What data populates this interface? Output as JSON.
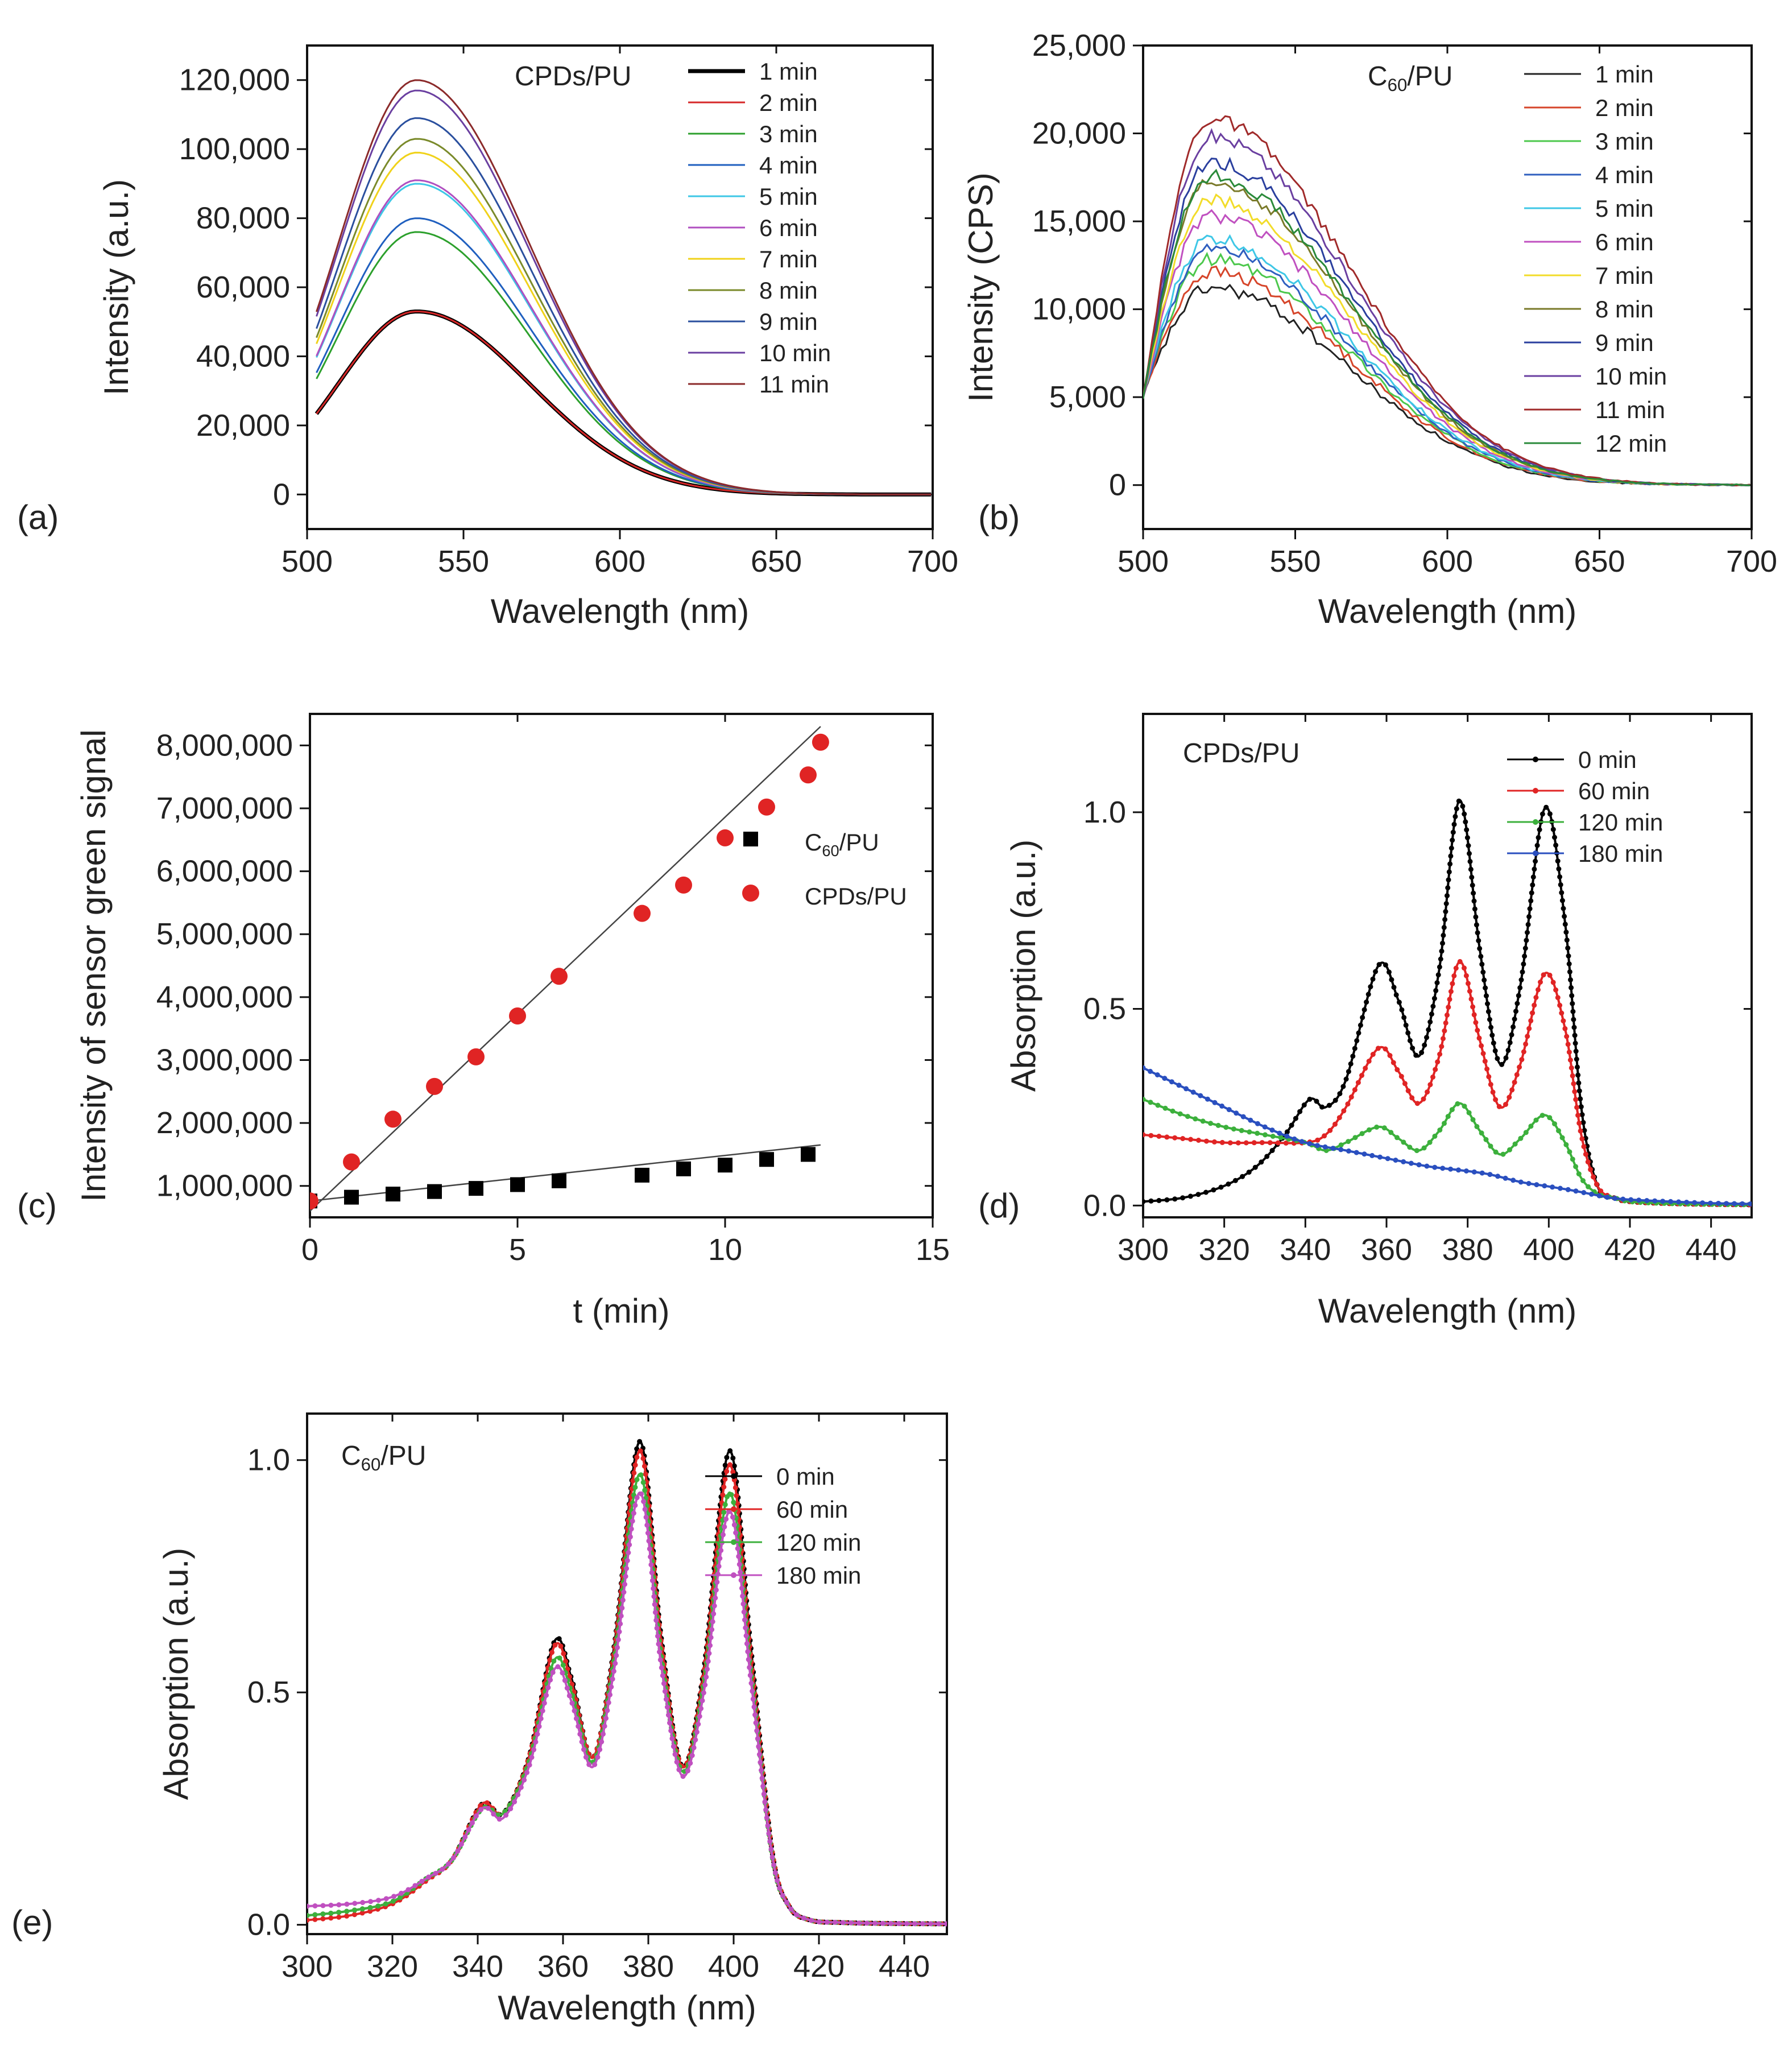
{
  "chart_data": [
    {
      "panel": "(a)",
      "type": "line",
      "inset": "CPDs/PU",
      "xlabel": "Wavelength (nm)",
      "ylabel": "Intensity (a.u.)",
      "xlim": [
        500,
        700
      ],
      "ylim": [
        -10000,
        130000
      ],
      "xticks": [
        500,
        550,
        600,
        650,
        700
      ],
      "xtick_labels": [
        "500",
        "550",
        "600",
        "650",
        "700"
      ],
      "yticks": [
        0,
        20000,
        40000,
        60000,
        80000,
        100000,
        120000
      ],
      "ytick_labels": [
        "0",
        "20,000",
        "40,000",
        "60,000",
        "80,000",
        "100,000",
        "120,000"
      ],
      "curve_model": {
        "peak_x": 535,
        "sigma_left": 25,
        "sigma_right": 36,
        "x_start": 503
      },
      "series": [
        {
          "name": "1 min",
          "peak": 53000,
          "color": "#000000",
          "width": 7
        },
        {
          "name": "2 min",
          "peak": 53000,
          "color": "#d62728",
          "width": 3
        },
        {
          "name": "3 min",
          "peak": 76000,
          "color": "#2ca02c",
          "width": 3
        },
        {
          "name": "4 min",
          "peak": 80000,
          "color": "#1f5fbf",
          "width": 3
        },
        {
          "name": "5 min",
          "peak": 90000,
          "color": "#3ec7e6",
          "width": 3
        },
        {
          "name": "6 min",
          "peak": 91000,
          "color": "#b04fc0",
          "width": 3
        },
        {
          "name": "7 min",
          "peak": 99000,
          "color": "#f0d21a",
          "width": 3
        },
        {
          "name": "8 min",
          "peak": 103000,
          "color": "#7a8a2a",
          "width": 3
        },
        {
          "name": "9 min",
          "peak": 109000,
          "color": "#2a4f9e",
          "width": 3
        },
        {
          "name": "10 min",
          "peak": 117000,
          "color": "#6a3fa0",
          "width": 3
        },
        {
          "name": "11 min",
          "peak": 120000,
          "color": "#8b2a2a",
          "width": 3
        }
      ]
    },
    {
      "panel": "(b)",
      "type": "line",
      "inset": "C60/PU",
      "inset_parts": {
        "main": "C",
        "sub": "60",
        "rest": "/PU"
      },
      "xlabel": "Wavelength (nm)",
      "ylabel": "Intensity (CPS)",
      "xlim": [
        500,
        700
      ],
      "ylim": [
        -2500,
        25000
      ],
      "xticks": [
        500,
        550,
        600,
        650,
        700
      ],
      "xtick_labels": [
        "500",
        "550",
        "600",
        "650",
        "700"
      ],
      "yticks": [
        0,
        5000,
        10000,
        15000,
        20000,
        25000
      ],
      "ytick_labels": [
        "0",
        "5,000",
        "10,000",
        "15,000",
        "20,000",
        "25,000"
      ],
      "curve_model": {
        "peak_x": 522,
        "sigma_left": 12,
        "sigma_right": 45,
        "x_start": 500,
        "start_value": 5000
      },
      "series": [
        {
          "name": "1 min",
          "peak": 11200,
          "color": "#222222"
        },
        {
          "name": "2 min",
          "peak": 12100,
          "color": "#d6452a"
        },
        {
          "name": "3 min",
          "peak": 12800,
          "color": "#4cc84c"
        },
        {
          "name": "4 min",
          "peak": 13400,
          "color": "#2f5fbf"
        },
        {
          "name": "5 min",
          "peak": 14000,
          "color": "#3ec7e6"
        },
        {
          "name": "6 min",
          "peak": 15300,
          "color": "#c050c0"
        },
        {
          "name": "7 min",
          "peak": 16200,
          "color": "#f2dc2a"
        },
        {
          "name": "8 min",
          "peak": 17200,
          "color": "#7a7a2a"
        },
        {
          "name": "9 min",
          "peak": 18400,
          "color": "#2a3f9e"
        },
        {
          "name": "10 min",
          "peak": 19800,
          "color": "#6a3fa0"
        },
        {
          "name": "11 min",
          "peak": 20800,
          "color": "#a02a2a"
        },
        {
          "name": "12 min",
          "peak": 17600,
          "color": "#2a8a3a"
        }
      ]
    },
    {
      "panel": "(c)",
      "type": "scatter",
      "xlabel": "t (min)",
      "ylabel": "Intensity of sensor green signal",
      "xlim": [
        0,
        15
      ],
      "ylim": [
        500000,
        8500000
      ],
      "xticks": [
        0,
        5,
        10,
        15
      ],
      "xtick_labels": [
        "0",
        "5",
        "10",
        "15"
      ],
      "yticks": [
        1000000,
        2000000,
        3000000,
        4000000,
        5000000,
        6000000,
        7000000,
        8000000
      ],
      "ytick_labels": [
        "1,000,000",
        "2,000,000",
        "3,000,000",
        "4,000,000",
        "5,000,000",
        "6,000,000",
        "7,000,000",
        "8,000,000"
      ],
      "series": [
        {
          "name": "C60/PU",
          "name_parts": {
            "main": "C",
            "sub": "60",
            "rest": "/PU"
          },
          "marker": "square",
          "color": "#000000",
          "x": [
            0,
            1,
            2,
            3,
            4,
            5,
            6,
            8,
            9,
            10,
            11,
            12
          ],
          "y": [
            760000,
            820000,
            870000,
            910000,
            960000,
            1020000,
            1080000,
            1170000,
            1270000,
            1330000,
            1420000,
            1500000
          ],
          "fit": [
            [
              0,
              760000
            ],
            [
              12.3,
              1650000
            ]
          ]
        },
        {
          "name": "CPDs/PU",
          "marker": "circle",
          "color": "#e02424",
          "x": [
            0,
            1,
            2,
            3,
            4,
            5,
            6,
            8,
            9,
            10,
            11,
            12,
            12.3
          ],
          "y": [
            760000,
            1380000,
            2060000,
            2580000,
            3050000,
            3700000,
            4330000,
            5330000,
            5780000,
            6530000,
            7020000,
            7530000,
            8050000
          ],
          "fit": [
            [
              0,
              600000
            ],
            [
              12.3,
              8300000
            ]
          ]
        }
      ]
    },
    {
      "panel": "(d)",
      "type": "line",
      "inset": "CPDs/PU",
      "xlabel": "Wavelength (nm)",
      "ylabel": "Absorption (a.u.)",
      "xlim": [
        300,
        450
      ],
      "ylim": [
        -0.03,
        1.25
      ],
      "xticks": [
        300,
        320,
        340,
        360,
        380,
        400,
        420,
        440
      ],
      "xtick_labels": [
        "300",
        "320",
        "340",
        "360",
        "380",
        "400",
        "420",
        "440"
      ],
      "yticks": [
        0.0,
        0.5,
        1.0
      ],
      "ytick_labels": [
        "0.0",
        "0.5",
        "1.0"
      ],
      "series": [
        {
          "name": "0 min",
          "color": "#000000",
          "markers": true,
          "x": [
            300,
            310,
            320,
            328,
            335,
            341,
            345,
            350,
            358,
            363,
            368,
            373,
            378,
            383,
            388,
            393,
            399,
            404,
            408,
            412,
            416,
            420,
            430,
            440,
            450
          ],
          "y": [
            0.01,
            0.02,
            0.05,
            0.1,
            0.18,
            0.27,
            0.25,
            0.32,
            0.61,
            0.52,
            0.38,
            0.6,
            1.03,
            0.65,
            0.36,
            0.56,
            1.01,
            0.72,
            0.25,
            0.05,
            0.02,
            0.01,
            0.005,
            0.003,
            0.002
          ]
        },
        {
          "name": "60 min",
          "color": "#e02424",
          "markers": true,
          "x": [
            300,
            310,
            320,
            330,
            340,
            345,
            350,
            358,
            363,
            368,
            373,
            378,
            383,
            388,
            393,
            399,
            404,
            408,
            412,
            416,
            420,
            430,
            440,
            450
          ],
          "y": [
            0.18,
            0.17,
            0.16,
            0.16,
            0.16,
            0.18,
            0.25,
            0.4,
            0.34,
            0.26,
            0.38,
            0.62,
            0.42,
            0.25,
            0.36,
            0.59,
            0.45,
            0.18,
            0.05,
            0.02,
            0.01,
            0.005,
            0.003,
            0.002
          ]
        },
        {
          "name": "120 min",
          "color": "#3cb03c",
          "markers": true,
          "x": [
            300,
            310,
            320,
            330,
            340,
            345,
            350,
            358,
            363,
            368,
            373,
            378,
            383,
            388,
            393,
            399,
            404,
            408,
            412,
            416,
            420,
            430,
            440,
            450
          ],
          "y": [
            0.27,
            0.23,
            0.2,
            0.18,
            0.16,
            0.14,
            0.16,
            0.2,
            0.17,
            0.14,
            0.19,
            0.26,
            0.19,
            0.13,
            0.17,
            0.23,
            0.16,
            0.07,
            0.03,
            0.02,
            0.01,
            0.005,
            0.003,
            0.002
          ]
        },
        {
          "name": "180 min",
          "color": "#2a4fbf",
          "markers": true,
          "x": [
            300,
            310,
            320,
            330,
            340,
            350,
            360,
            370,
            378,
            385,
            393,
            399,
            405,
            410,
            415,
            420,
            430,
            440,
            450
          ],
          "y": [
            0.35,
            0.3,
            0.25,
            0.2,
            0.16,
            0.14,
            0.12,
            0.1,
            0.09,
            0.08,
            0.06,
            0.05,
            0.04,
            0.03,
            0.02,
            0.015,
            0.01,
            0.006,
            0.004
          ]
        }
      ]
    },
    {
      "panel": "(e)",
      "type": "line",
      "inset": "C60/PU",
      "inset_parts": {
        "main": "C",
        "sub": "60",
        "rest": "/PU"
      },
      "xlabel": "Wavelength (nm)",
      "ylabel": "Absorption (a.u.)",
      "xlim": [
        300,
        450
      ],
      "ylim": [
        -0.02,
        1.1
      ],
      "xticks": [
        300,
        320,
        340,
        360,
        380,
        400,
        420,
        440
      ],
      "xtick_labels": [
        "300",
        "320",
        "340",
        "360",
        "380",
        "400",
        "420",
        "440"
      ],
      "yticks": [
        0.0,
        0.5,
        1.0
      ],
      "ytick_labels": [
        "0.0",
        "0.5",
        "1.0"
      ],
      "series": [
        {
          "name": "0 min",
          "color": "#000000",
          "markers": true,
          "x": [
            300,
            310,
            320,
            328,
            334,
            341,
            346,
            352,
            358,
            362,
            367,
            372,
            378,
            383,
            388,
            393,
            399,
            404,
            409,
            413,
            418,
            425,
            435,
            450
          ],
          "y": [
            0.02,
            0.03,
            0.05,
            0.1,
            0.14,
            0.26,
            0.24,
            0.36,
            0.61,
            0.53,
            0.36,
            0.6,
            1.04,
            0.62,
            0.34,
            0.55,
            1.02,
            0.6,
            0.16,
            0.04,
            0.01,
            0.005,
            0.003,
            0.002
          ]
        },
        {
          "name": "60 min",
          "color": "#e02424",
          "markers": true,
          "x": [
            300,
            310,
            320,
            328,
            334,
            341,
            346,
            352,
            358,
            362,
            367,
            372,
            378,
            383,
            388,
            393,
            399,
            404,
            409,
            413,
            418,
            425,
            435,
            450
          ],
          "y": [
            0.01,
            0.02,
            0.045,
            0.095,
            0.14,
            0.26,
            0.24,
            0.36,
            0.6,
            0.52,
            0.36,
            0.59,
            1.02,
            0.61,
            0.34,
            0.54,
            0.99,
            0.58,
            0.16,
            0.04,
            0.01,
            0.005,
            0.003,
            0.002
          ]
        },
        {
          "name": "120 min",
          "color": "#3cb03c",
          "markers": true,
          "x": [
            300,
            310,
            320,
            328,
            334,
            341,
            346,
            352,
            358,
            362,
            367,
            372,
            378,
            383,
            388,
            393,
            399,
            404,
            409,
            413,
            418,
            425,
            435,
            450
          ],
          "y": [
            0.02,
            0.03,
            0.05,
            0.1,
            0.14,
            0.25,
            0.24,
            0.35,
            0.57,
            0.5,
            0.35,
            0.57,
            0.97,
            0.58,
            0.33,
            0.52,
            0.93,
            0.55,
            0.15,
            0.04,
            0.01,
            0.005,
            0.003,
            0.002
          ]
        },
        {
          "name": "180 min",
          "color": "#c050c0",
          "markers": true,
          "x": [
            300,
            310,
            320,
            328,
            334,
            341,
            346,
            352,
            358,
            362,
            367,
            372,
            378,
            383,
            388,
            393,
            399,
            404,
            409,
            413,
            418,
            425,
            435,
            450
          ],
          "y": [
            0.04,
            0.045,
            0.06,
            0.1,
            0.14,
            0.25,
            0.23,
            0.34,
            0.55,
            0.48,
            0.34,
            0.55,
            0.93,
            0.56,
            0.32,
            0.5,
            0.89,
            0.53,
            0.15,
            0.04,
            0.01,
            0.005,
            0.003,
            0.002
          ]
        }
      ]
    }
  ]
}
